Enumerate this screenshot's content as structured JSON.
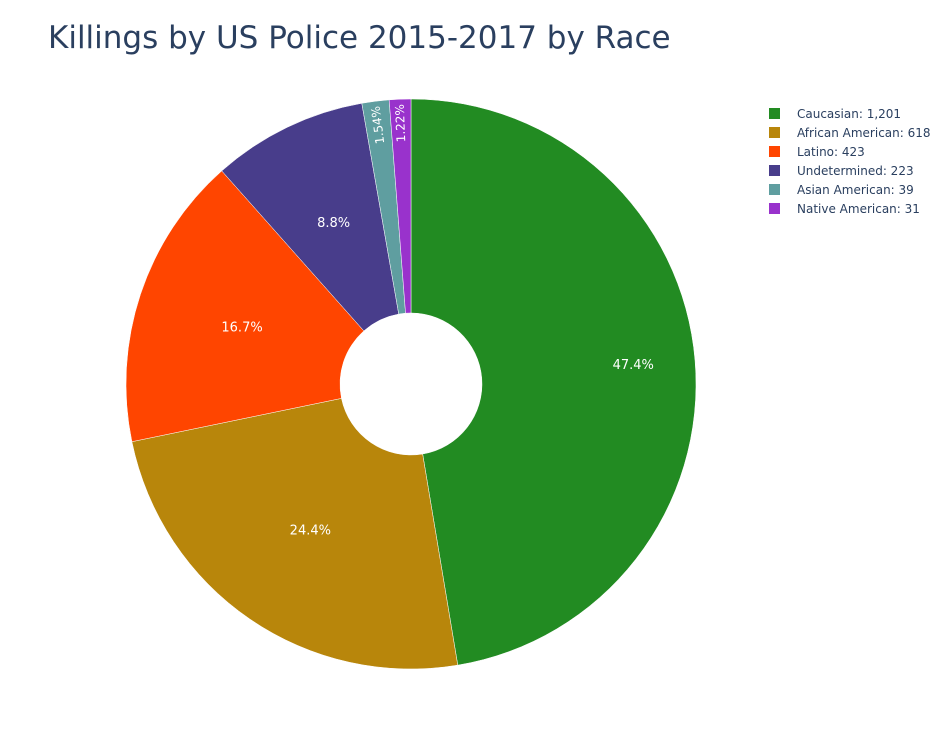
{
  "chart_data": {
    "type": "pie",
    "title": "Killings by US Police 2015-2017 by Race",
    "hole": true,
    "legend_position": "top-right",
    "slices": [
      {
        "label": "Caucasian",
        "value": 1201,
        "value_text": "1,201",
        "percent_text": "47.4%",
        "color": "#228B22"
      },
      {
        "label": "African American",
        "value": 618,
        "value_text": "618",
        "percent_text": "24.4%",
        "color": "#B8860B"
      },
      {
        "label": "Latino",
        "value": 423,
        "value_text": "423",
        "percent_text": "16.7%",
        "color": "#FF4500"
      },
      {
        "label": "Undetermined",
        "value": 223,
        "value_text": "223",
        "percent_text": "8.8%",
        "color": "#483D8B"
      },
      {
        "label": "Asian American",
        "value": 39,
        "value_text": "39",
        "percent_text": "1.54%",
        "color": "#5F9EA0"
      },
      {
        "label": "Native American",
        "value": 31,
        "value_text": "31",
        "percent_text": "1.22%",
        "color": "#9932CC"
      }
    ]
  }
}
